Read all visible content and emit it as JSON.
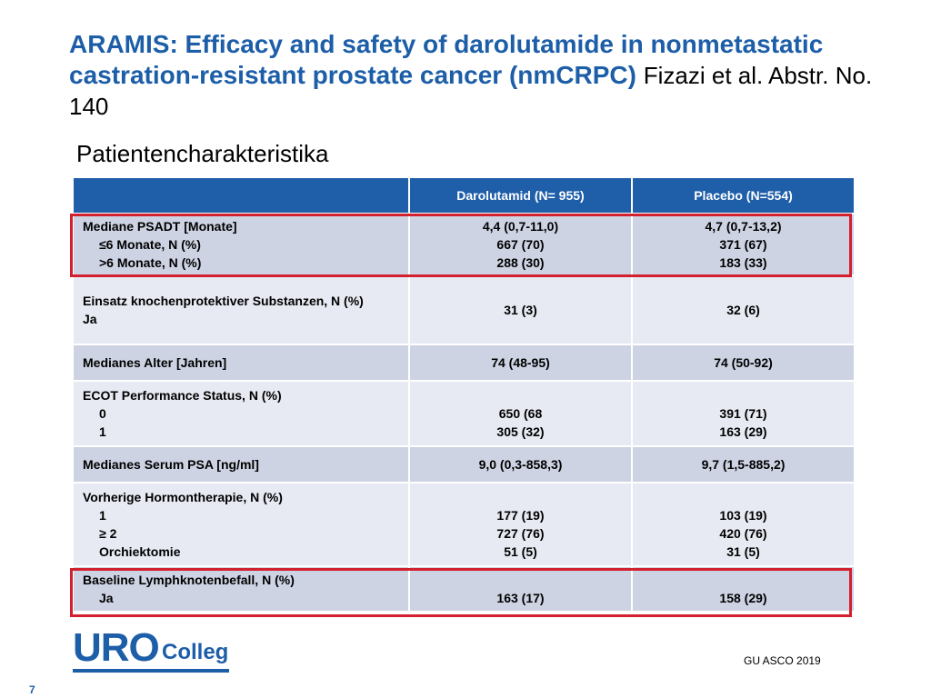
{
  "title": {
    "main": "ARAMIS: Efficacy and safety of darolutamide in nonmetastatic castration-resistant prostate cancer (nmCRPC)",
    "citation": "Fizazi et al. Abstr. No.  140"
  },
  "subtitle": "Patientencharakteristika",
  "table": {
    "headers": [
      "",
      "Darolutamid (N= 955)",
      "Placebo (N=554)"
    ],
    "rows": [
      {
        "label": [
          "Mediane PSADT [Monate]",
          "≤6 Monate, N (%)",
          ">6 Monate, N (%)"
        ],
        "darolutamid": [
          "4,4 (0,7-11,0)",
          "667 (70)",
          "288 (30)"
        ],
        "placebo": [
          "4,7 (0,7-13,2)",
          "371 (67)",
          "183 (33)"
        ]
      },
      {
        "label": [
          "Einsatz knochenprotektiver Substanzen, N (%)",
          "Ja"
        ],
        "darolutamid": [
          "31 (3)"
        ],
        "placebo": [
          "32 (6)"
        ]
      },
      {
        "label": [
          "Medianes Alter [Jahren]"
        ],
        "darolutamid": [
          "74 (48-95)"
        ],
        "placebo": [
          "74 (50-92)"
        ]
      },
      {
        "label": [
          "ECOT Performance Status, N (%)",
          "0",
          "1"
        ],
        "darolutamid": [
          "650 (68",
          "305 (32)"
        ],
        "placebo": [
          "391 (71)",
          "163 (29)"
        ]
      },
      {
        "label": [
          "Medianes Serum PSA [ng/ml]"
        ],
        "darolutamid": [
          "9,0 (0,3-858,3)"
        ],
        "placebo": [
          "9,7 (1,5-885,2)"
        ]
      },
      {
        "label": [
          "Vorherige Hormontherapie, N (%)",
          "1",
          "≥ 2",
          "Orchiektomie"
        ],
        "darolutamid": [
          "177 (19)",
          "727 (76)",
          "51 (5)"
        ],
        "placebo": [
          "103 (19)",
          "420 (76)",
          "31 (5)"
        ]
      },
      {
        "label": [
          "Baseline Lymphknotenbefall,  N (%)",
          "Ja"
        ],
        "darolutamid": [
          "163 (17)"
        ],
        "placebo": [
          "158 (29)"
        ]
      }
    ]
  },
  "logo": {
    "part1": "URO",
    "part2": "Colleg"
  },
  "footer": {
    "source": "GU ASCO 2019",
    "page": "7"
  },
  "colors": {
    "header_blue": "#1f5fa9",
    "title_blue": "#1d5ea8",
    "highlight_red": "#d2202f",
    "row_dark": "#cdd3e3",
    "row_light": "#e7eaf2"
  }
}
